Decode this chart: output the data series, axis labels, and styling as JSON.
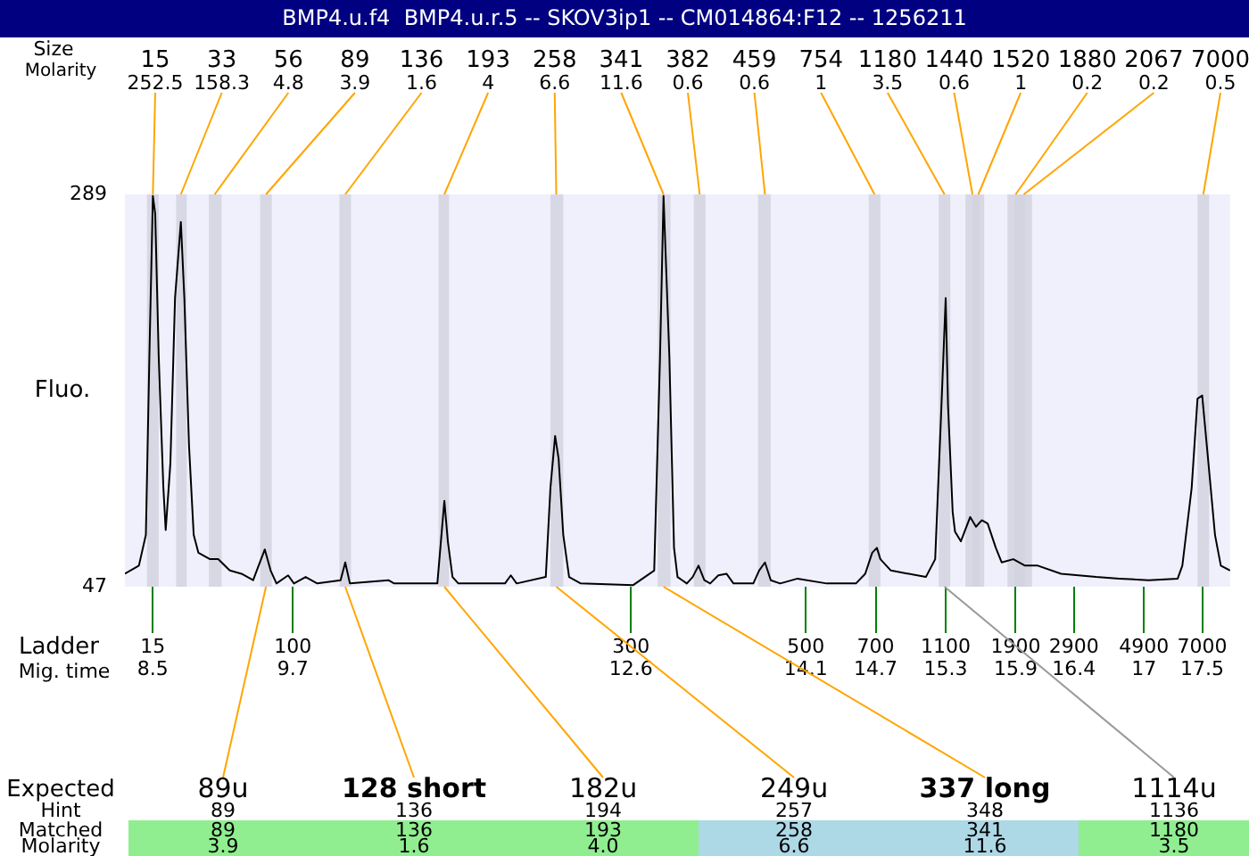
{
  "chart_data": {
    "type": "line",
    "title": "BMP4.u.f4  BMP4.u.r.5 -- SKOV3ip1 -- CM014864:F12 -- 1256211",
    "ylabel": "Fluo.",
    "x": [
      8.26,
      8.38,
      8.44,
      8.47,
      8.5,
      8.52,
      8.55,
      8.59,
      8.61,
      8.65,
      8.69,
      8.74,
      8.77,
      8.81,
      8.85,
      8.89,
      8.99,
      9.06,
      9.16,
      9.26,
      9.36,
      9.46,
      9.51,
      9.56,
      9.66,
      9.71,
      9.81,
      9.91,
      10.11,
      10.15,
      10.19,
      10.52,
      10.57,
      10.94,
      11.0,
      11.03,
      11.07,
      11.12,
      11.52,
      11.57,
      11.62,
      11.87,
      11.91,
      11.95,
      11.98,
      12.02,
      12.07,
      12.17,
      12.62,
      12.8,
      12.85,
      12.88,
      12.93,
      12.97,
      13.0,
      13.08,
      13.13,
      13.18,
      13.23,
      13.28,
      13.35,
      13.42,
      13.48,
      13.65,
      13.7,
      13.75,
      13.8,
      13.88,
      14.03,
      14.28,
      14.53,
      14.61,
      14.67,
      14.71,
      14.74,
      14.83,
      15.13,
      15.21,
      15.26,
      15.3,
      15.32,
      15.36,
      15.38,
      15.43,
      15.51,
      15.56,
      15.61,
      15.66,
      15.73,
      15.78,
      15.88,
      15.98,
      16.09,
      16.29,
      16.59,
      16.79,
      17.04,
      17.29,
      17.33,
      17.41,
      17.46,
      17.5,
      17.54,
      17.61,
      17.66,
      17.74
    ],
    "series": [
      {
        "color": "#000000",
        "values": [
          55,
          60,
          79,
          189,
          288,
          277,
          189,
          108,
          82,
          123,
          225,
          272,
          225,
          134,
          79,
          68,
          64,
          64,
          57,
          55,
          51,
          70,
          57,
          49,
          54,
          49,
          53,
          49,
          51,
          62,
          49,
          51,
          49,
          49,
          100,
          75,
          53,
          49,
          49,
          54,
          49,
          53,
          108,
          140,
          126,
          79,
          53,
          49,
          48,
          57,
          189,
          288,
          189,
          71,
          53,
          49,
          53,
          60,
          51,
          49,
          54,
          55,
          49,
          49,
          57,
          62,
          51,
          49,
          52,
          49,
          49,
          55,
          68,
          71,
          64,
          57,
          53,
          64,
          152,
          225,
          159,
          93,
          81,
          75,
          90,
          84,
          88,
          86,
          71,
          62,
          64,
          60,
          60,
          55,
          53,
          52,
          51,
          52,
          60,
          108,
          163,
          165,
          134,
          79,
          60,
          57
        ]
      }
    ],
    "xlim": [
      8.26,
      17.74
    ],
    "xticks": [
      8.5,
      9.7,
      12.6,
      14.1,
      14.7,
      15.3,
      15.9,
      16.4,
      17,
      17.5
    ],
    "ylim": [
      47,
      289
    ],
    "yticks": [
      47,
      289
    ],
    "grid": false,
    "legend": false,
    "marker": "none",
    "line_style": "solid",
    "bands": [
      {
        "axis": "x",
        "from": 8.45,
        "to": 8.55,
        "color": "#d3d3e0"
      },
      {
        "axis": "x",
        "from": 8.7,
        "to": 8.79,
        "color": "#d3d3e0"
      },
      {
        "axis": "x",
        "from": 8.98,
        "to": 9.09,
        "color": "#d3d3e0"
      },
      {
        "axis": "x",
        "from": 9.42,
        "to": 9.52,
        "color": "#d3d3e0"
      },
      {
        "axis": "x",
        "from": 10.1,
        "to": 10.2,
        "color": "#d3d3e0"
      },
      {
        "axis": "x",
        "from": 10.95,
        "to": 11.04,
        "color": "#d3d3e0"
      },
      {
        "axis": "x",
        "from": 11.91,
        "to": 12.02,
        "color": "#d3d3e0"
      },
      {
        "axis": "x",
        "from": 12.83,
        "to": 12.94,
        "color": "#d3d3e0"
      },
      {
        "axis": "x",
        "from": 13.14,
        "to": 13.24,
        "color": "#d3d3e0"
      },
      {
        "axis": "x",
        "from": 13.69,
        "to": 13.8,
        "color": "#d3d3e0"
      },
      {
        "axis": "x",
        "from": 14.64,
        "to": 14.74,
        "color": "#d3d3e0"
      },
      {
        "axis": "x",
        "from": 15.24,
        "to": 15.34,
        "color": "#d3d3e0"
      },
      {
        "axis": "x",
        "from": 15.47,
        "to": 15.59,
        "color": "#d3d3e0"
      },
      {
        "axis": "x",
        "from": 15.53,
        "to": 15.63,
        "color": "#d3d3e0"
      },
      {
        "axis": "x",
        "from": 15.83,
        "to": 15.98,
        "color": "#d3d3e0"
      },
      {
        "axis": "x",
        "from": 15.89,
        "to": 16.04,
        "color": "#d3d3e0"
      },
      {
        "axis": "x",
        "from": 17.46,
        "to": 17.56,
        "color": "#d3d3e0"
      }
    ],
    "annotations": [
      {
        "text": "15\n252.5",
        "x": 8.5,
        "y": 289
      },
      {
        "text": "33\n158.3",
        "x": 8.74,
        "y": 289
      },
      {
        "text": "56\n4.8",
        "x": 9.03,
        "y": 289
      },
      {
        "text": "89\n3.9",
        "x": 9.47,
        "y": 289
      },
      {
        "text": "136\n1.6",
        "x": 10.15,
        "y": 289
      },
      {
        "text": "193\n4",
        "x": 11.0,
        "y": 289
      },
      {
        "text": "258\n6.6",
        "x": 11.96,
        "y": 289
      },
      {
        "text": "341\n11.6",
        "x": 12.88,
        "y": 289
      },
      {
        "text": "382\n0.6",
        "x": 13.19,
        "y": 289
      },
      {
        "text": "459\n0.6",
        "x": 13.75,
        "y": 289
      },
      {
        "text": "754\n1",
        "x": 14.69,
        "y": 289
      },
      {
        "text": "1180\n3.5",
        "x": 15.29,
        "y": 289
      },
      {
        "text": "1440\n0.6",
        "x": 15.53,
        "y": 289
      },
      {
        "text": "1520\n1",
        "x": 15.58,
        "y": 289
      },
      {
        "text": "1880\n0.2",
        "x": 15.9,
        "y": 289
      },
      {
        "text": "2067\n0.2",
        "x": 15.97,
        "y": 289
      },
      {
        "text": "7000\n0.5",
        "x": 17.51,
        "y": 289
      },
      "Size",
      "Molarity",
      "Ladder",
      "Mig. time",
      "15",
      "100",
      "300",
      "500",
      "700",
      "1100",
      "1900",
      "2900",
      "4900",
      "7000",
      "Expected",
      "Hint",
      "Matched",
      "Molarity",
      {
        "text": "89u",
        "x": 9.47,
        "y": 47
      },
      "89",
      "89",
      "3.9",
      {
        "text": "128 short",
        "x": 10.15,
        "y": 47
      },
      "136",
      "136",
      "1.6",
      {
        "text": "182u",
        "x": 11.0,
        "y": 47
      },
      "194",
      "193",
      "4.0",
      {
        "text": "249u",
        "x": 11.96,
        "y": 47
      },
      "257",
      "258",
      "6.6",
      {
        "text": "337 long",
        "x": 12.88,
        "y": 47
      },
      "348",
      "341",
      "11.6",
      {
        "text": "1114u",
        "x": 15.29,
        "y": 47
      },
      "1136",
      "1180",
      "3.5"
    ]
  }
}
